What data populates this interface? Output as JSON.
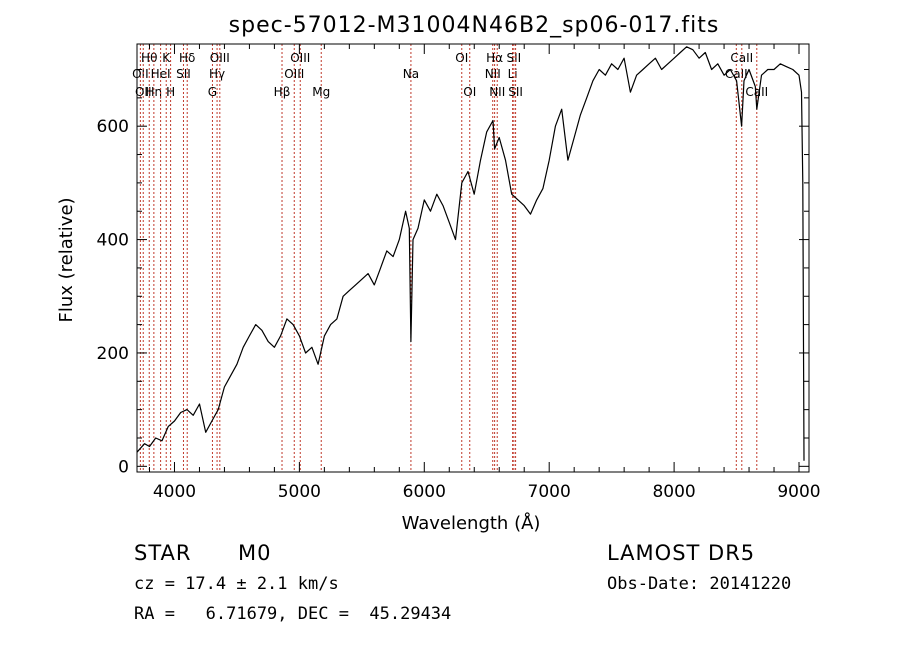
{
  "chart_data": {
    "type": "line",
    "title": "spec-57012-M31004N46B2_sp06-017.fits",
    "xlabel": "Wavelength (Å)",
    "ylabel": "Flux (relative)",
    "xlim": [
      3700,
      9080
    ],
    "ylim": [
      -10,
      745
    ],
    "xticks": [
      4000,
      5000,
      6000,
      7000,
      8000,
      9000
    ],
    "yticks": [
      0,
      200,
      400,
      600
    ],
    "grid": false,
    "series": [
      {
        "x": [
          3700,
          3760,
          3800,
          3850,
          3900,
          3950,
          4000,
          4050,
          4100,
          4150,
          4200,
          4250,
          4300,
          4350,
          4400,
          4450,
          4500,
          4550,
          4600,
          4650,
          4700,
          4750,
          4800,
          4850,
          4900,
          4950,
          5000,
          5050,
          5100,
          5150,
          5200,
          5250,
          5300,
          5350,
          5400,
          5450,
          5500,
          5550,
          5600,
          5650,
          5700,
          5750,
          5800,
          5850,
          5880,
          5893,
          5910,
          5950,
          6000,
          6050,
          6100,
          6150,
          6200,
          6250,
          6300,
          6350,
          6400,
          6450,
          6500,
          6550,
          6563,
          6600,
          6650,
          6700,
          6750,
          6800,
          6850,
          6900,
          6950,
          7000,
          7050,
          7100,
          7150,
          7200,
          7250,
          7300,
          7350,
          7400,
          7450,
          7500,
          7550,
          7600,
          7650,
          7700,
          7750,
          7800,
          7850,
          7900,
          7950,
          8000,
          8050,
          8100,
          8150,
          8200,
          8250,
          8300,
          8350,
          8400,
          8450,
          8500,
          8540,
          8560,
          8600,
          8650,
          8662,
          8700,
          8750,
          8800,
          8850,
          8900,
          8950,
          9000,
          9020,
          9030,
          9040
        ],
        "y": [
          25,
          40,
          35,
          50,
          45,
          70,
          80,
          95,
          100,
          90,
          110,
          60,
          80,
          100,
          140,
          160,
          180,
          210,
          230,
          250,
          240,
          220,
          210,
          230,
          260,
          250,
          230,
          200,
          210,
          180,
          230,
          250,
          260,
          300,
          310,
          320,
          330,
          340,
          320,
          350,
          380,
          370,
          400,
          450,
          420,
          220,
          400,
          420,
          470,
          450,
          480,
          460,
          430,
          400,
          500,
          520,
          480,
          540,
          590,
          610,
          560,
          580,
          540,
          480,
          470,
          460,
          445,
          470,
          490,
          540,
          600,
          630,
          540,
          580,
          620,
          650,
          680,
          700,
          690,
          710,
          700,
          720,
          660,
          690,
          700,
          710,
          720,
          700,
          710,
          720,
          730,
          740,
          735,
          720,
          730,
          700,
          710,
          690,
          700,
          680,
          600,
          680,
          700,
          670,
          630,
          690,
          700,
          700,
          710,
          705,
          700,
          690,
          660,
          500,
          10
        ]
      }
    ],
    "lines": [
      {
        "x": 3727,
        "label": "OII",
        "row": 2
      },
      {
        "x": 3750,
        "label": "OII",
        "row": 3
      },
      {
        "x": 3798,
        "label": "Hθ",
        "row": 1
      },
      {
        "x": 3835,
        "label": "Hη",
        "row": 3
      },
      {
        "x": 3889,
        "label": "HeI",
        "row": 2
      },
      {
        "x": 3934,
        "label": "K",
        "row": 1
      },
      {
        "x": 3969,
        "label": "H",
        "row": 3
      },
      {
        "x": 4072,
        "label": "SII",
        "row": 2
      },
      {
        "x": 4102,
        "label": "Hδ",
        "row": 1
      },
      {
        "x": 4304,
        "label": "G",
        "row": 3
      },
      {
        "x": 4341,
        "label": "Hγ",
        "row": 2
      },
      {
        "x": 4363,
        "label": "OIII",
        "row": 1
      },
      {
        "x": 4861,
        "label": "Hβ",
        "row": 3
      },
      {
        "x": 4959,
        "label": "OIII",
        "row": 2
      },
      {
        "x": 5007,
        "label": "OIII",
        "row": 1
      },
      {
        "x": 5175,
        "label": "Mg",
        "row": 3
      },
      {
        "x": 5893,
        "label": "Na",
        "row": 2
      },
      {
        "x": 6300,
        "label": "OI",
        "row": 1
      },
      {
        "x": 6364,
        "label": "OI",
        "row": 3
      },
      {
        "x": 6548,
        "label": "NII",
        "row": 2
      },
      {
        "x": 6563,
        "label": "Hα",
        "row": 1
      },
      {
        "x": 6584,
        "label": "NII",
        "row": 3
      },
      {
        "x": 6707,
        "label": "Li",
        "row": 2
      },
      {
        "x": 6717,
        "label": "SII",
        "row": 1
      },
      {
        "x": 6731,
        "label": "SII",
        "row": 3
      },
      {
        "x": 8498,
        "label": "CaII",
        "row": 2
      },
      {
        "x": 8542,
        "label": "CaII",
        "row": 1
      },
      {
        "x": 8662,
        "label": "CaII",
        "row": 3
      }
    ]
  },
  "info": {
    "class": "STAR",
    "subclass": "M0",
    "survey": "LAMOST DR5",
    "cz": "cz = 17.4 ± 2.1 km/s",
    "obs_date": "Obs-Date: 20141220",
    "radec": "RA =   6.71679, DEC =  45.29434"
  }
}
